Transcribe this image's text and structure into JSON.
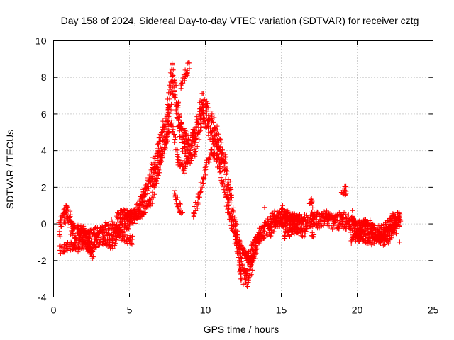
{
  "chart_data": {
    "type": "scatter",
    "title": "Day 158 of 2024, Sidereal Day-to-day VTEC variation (SDTVAR) for receiver cztg",
    "xlabel": "GPS time / hours",
    "ylabel": "SDTVAR / TECUs",
    "xlim": [
      0,
      25
    ],
    "ylim": [
      -4,
      10
    ],
    "x_ticks": [
      0,
      5,
      10,
      15,
      20,
      25
    ],
    "y_ticks": [
      -4,
      -2,
      0,
      2,
      4,
      6,
      8,
      10
    ],
    "grid": true,
    "marker": "+",
    "series": [
      {
        "name": "SDTVAR",
        "color": "#ff0000",
        "trend": [
          [
            0.4,
            -0.3
          ],
          [
            0.6,
            0.4
          ],
          [
            0.9,
            0.6
          ],
          [
            1.2,
            -0.2
          ],
          [
            1.5,
            -0.6
          ],
          [
            1.8,
            -0.4
          ],
          [
            2.2,
            -0.9
          ],
          [
            2.6,
            -1.3
          ],
          [
            3.0,
            -0.8
          ],
          [
            3.4,
            -0.7
          ],
          [
            3.8,
            -1.0
          ],
          [
            4.2,
            -0.5
          ],
          [
            4.6,
            0.0
          ],
          [
            5.0,
            0.2
          ],
          [
            5.4,
            0.5
          ],
          [
            5.8,
            1.2
          ],
          [
            6.2,
            2.0
          ],
          [
            6.6,
            3.0
          ],
          [
            7.0,
            4.0
          ],
          [
            7.3,
            5.0
          ],
          [
            7.6,
            6.5
          ],
          [
            7.8,
            8.0
          ],
          [
            8.0,
            7.0
          ],
          [
            8.3,
            5.5
          ],
          [
            8.6,
            4.5
          ],
          [
            9.0,
            4.0
          ],
          [
            9.3,
            4.5
          ],
          [
            9.6,
            5.5
          ],
          [
            9.8,
            6.5
          ],
          [
            10.0,
            6.0
          ],
          [
            10.3,
            5.5
          ],
          [
            10.6,
            5.0
          ],
          [
            11.0,
            4.0
          ],
          [
            11.3,
            3.0
          ],
          [
            11.6,
            1.5
          ],
          [
            11.9,
            0.0
          ],
          [
            12.2,
            -1.5
          ],
          [
            12.5,
            -2.8
          ],
          [
            12.8,
            -3.0
          ],
          [
            13.2,
            -1.5
          ],
          [
            13.6,
            -0.5
          ],
          [
            14.0,
            -0.3
          ],
          [
            14.5,
            0.3
          ],
          [
            15.0,
            0.2
          ],
          [
            15.5,
            0.3
          ],
          [
            16.0,
            0.1
          ],
          [
            16.5,
            0.0
          ],
          [
            17.0,
            0.2
          ],
          [
            17.5,
            0.2
          ],
          [
            18.0,
            0.3
          ],
          [
            18.5,
            0.1
          ],
          [
            19.0,
            0.2
          ],
          [
            19.5,
            0.0
          ],
          [
            20.0,
            -0.3
          ],
          [
            20.5,
            -0.2
          ],
          [
            21.0,
            -0.4
          ],
          [
            21.5,
            -0.6
          ],
          [
            22.0,
            -0.2
          ],
          [
            22.5,
            0.2
          ],
          [
            22.8,
            0.3
          ]
        ],
        "branches": [
          [
            [
              0.4,
              -1.4
            ],
            [
              1.0,
              -1.2
            ],
            [
              1.6,
              -1.3
            ],
            [
              2.0,
              -1.1
            ],
            [
              2.6,
              -1.7
            ]
          ],
          [
            [
              1.6,
              -0.3
            ],
            [
              2.4,
              -0.6
            ],
            [
              3.2,
              -0.3
            ],
            [
              3.8,
              0.0
            ],
            [
              4.6,
              -0.8
            ],
            [
              5.2,
              -0.9
            ]
          ],
          [
            [
              4.2,
              0.4
            ],
            [
              4.8,
              0.6
            ],
            [
              5.2,
              0.4
            ],
            [
              5.8,
              0.6
            ],
            [
              6.4,
              1.2
            ],
            [
              7.0,
              3.0
            ],
            [
              7.4,
              4.5
            ],
            [
              7.8,
              5.5
            ],
            [
              8.2,
              3.5
            ],
            [
              8.6,
              3.0
            ],
            [
              9.0,
              4.0
            ]
          ],
          [
            [
              8.4,
              7.5
            ],
            [
              8.6,
              8.0
            ],
            [
              8.8,
              8.4
            ],
            [
              8.95,
              8.6
            ]
          ],
          [
            [
              8.0,
              1.8
            ],
            [
              8.2,
              1.0
            ],
            [
              8.4,
              0.8
            ]
          ],
          [
            [
              9.2,
              0.5
            ],
            [
              9.6,
              1.5
            ],
            [
              10.0,
              3.0
            ],
            [
              10.4,
              4.0
            ],
            [
              10.8,
              3.5
            ],
            [
              11.2,
              2.0
            ],
            [
              11.6,
              0.5
            ],
            [
              12.0,
              -0.8
            ],
            [
              12.4,
              -1.4
            ],
            [
              12.8,
              -1.8
            ],
            [
              13.2,
              -1.0
            ],
            [
              13.6,
              -0.7
            ]
          ],
          [
            [
              12.5,
              -1.3
            ],
            [
              12.7,
              -1.8
            ],
            [
              13.0,
              -2.2
            ],
            [
              13.3,
              -1.6
            ]
          ],
          [
            [
              15.0,
              0.8
            ],
            [
              15.4,
              0.5
            ],
            [
              15.8,
              0.2
            ],
            [
              16.2,
              0.3
            ]
          ],
          [
            [
              15.2,
              -0.6
            ],
            [
              15.6,
              -0.4
            ],
            [
              16.0,
              -0.3
            ],
            [
              16.6,
              -0.5
            ]
          ],
          [
            [
              16.9,
              1.0
            ],
            [
              17.0,
              1.4
            ],
            [
              17.1,
              0.4
            ],
            [
              17.0,
              -0.5
            ],
            [
              17.1,
              -0.8
            ]
          ],
          [
            [
              19.0,
              1.8
            ],
            [
              19.3,
              1.8
            ]
          ],
          [
            [
              19.7,
              0.5
            ],
            [
              20.0,
              -0.7
            ],
            [
              20.5,
              -0.9
            ],
            [
              21.0,
              -0.9
            ],
            [
              21.5,
              -0.7
            ],
            [
              22.0,
              -0.4
            ],
            [
              22.4,
              0.0
            ],
            [
              22.8,
              0.4
            ]
          ],
          [
            [
              19.6,
              -1.0
            ],
            [
              20.0,
              -0.6
            ],
            [
              20.4,
              -0.2
            ],
            [
              20.8,
              0.0
            ],
            [
              21.4,
              -0.8
            ],
            [
              21.8,
              -1.0
            ],
            [
              22.2,
              -0.6
            ],
            [
              22.6,
              -0.2
            ]
          ],
          [
            [
              14.3,
              -0.5
            ],
            [
              14.7,
              0.2
            ],
            [
              15.1,
              0.1
            ]
          ]
        ],
        "isolated": [
          [
            22.8,
            -1.0
          ],
          [
            19.2,
            1.8
          ],
          [
            12.5,
            -3.3
          ],
          [
            8.5,
            0.6
          ],
          [
            13.9,
            0.9
          ],
          [
            17.0,
            1.3
          ]
        ]
      }
    ]
  }
}
